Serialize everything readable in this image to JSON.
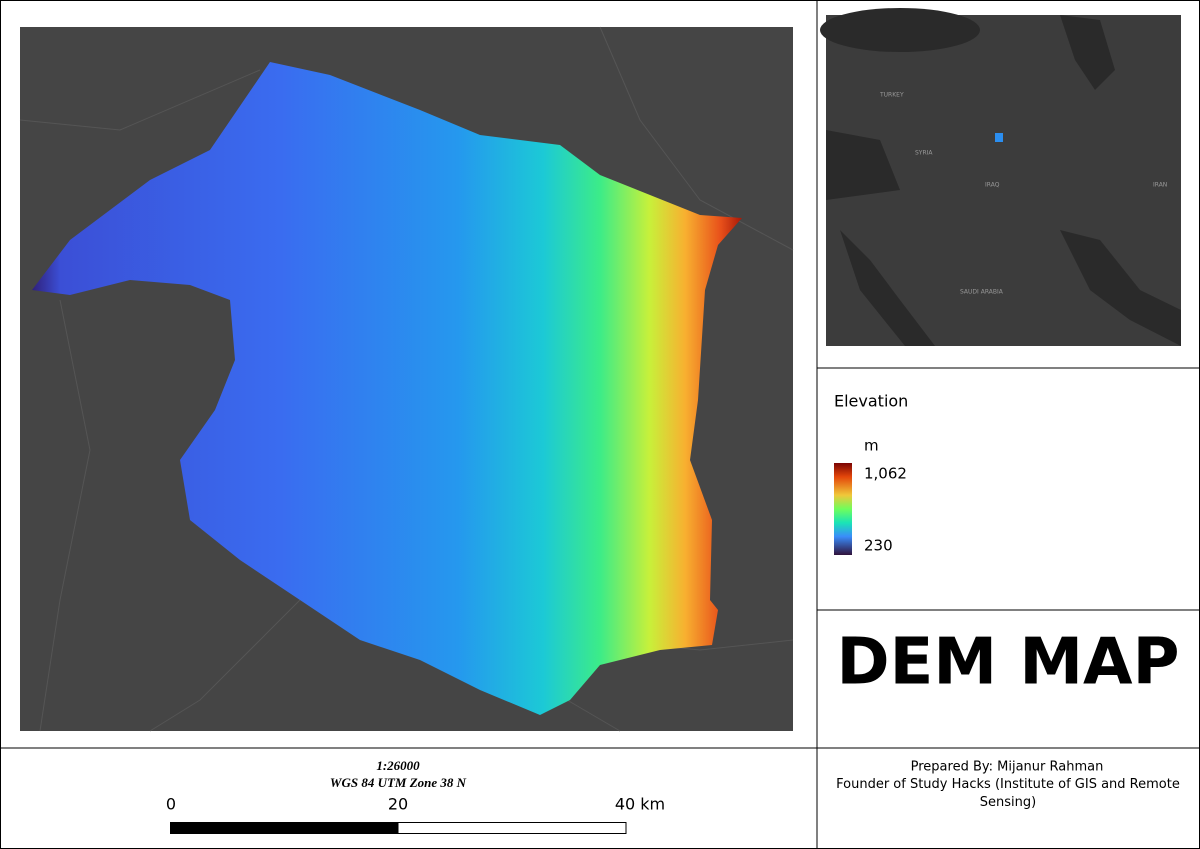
{
  "legend": {
    "title": "Elevation",
    "unit": "m",
    "max_label": "1,062",
    "min_label": "230"
  },
  "title": "DEM MAP",
  "scale": {
    "ratio": "1:26000",
    "projection": "WGS 84 UTM Zone 38 N",
    "labels": [
      "0",
      "20",
      "40 km"
    ]
  },
  "credits": {
    "prepared_by": "Prepared By: Mijanur Rahman",
    "affiliation": "Founder of Study Hacks (Institute of GIS and Remote Sensing)"
  },
  "inset": {
    "labels": [
      "TURKEY",
      "SYRIA",
      "IRAQ",
      "IRAN",
      "SAUDI ARABIA"
    ]
  }
}
